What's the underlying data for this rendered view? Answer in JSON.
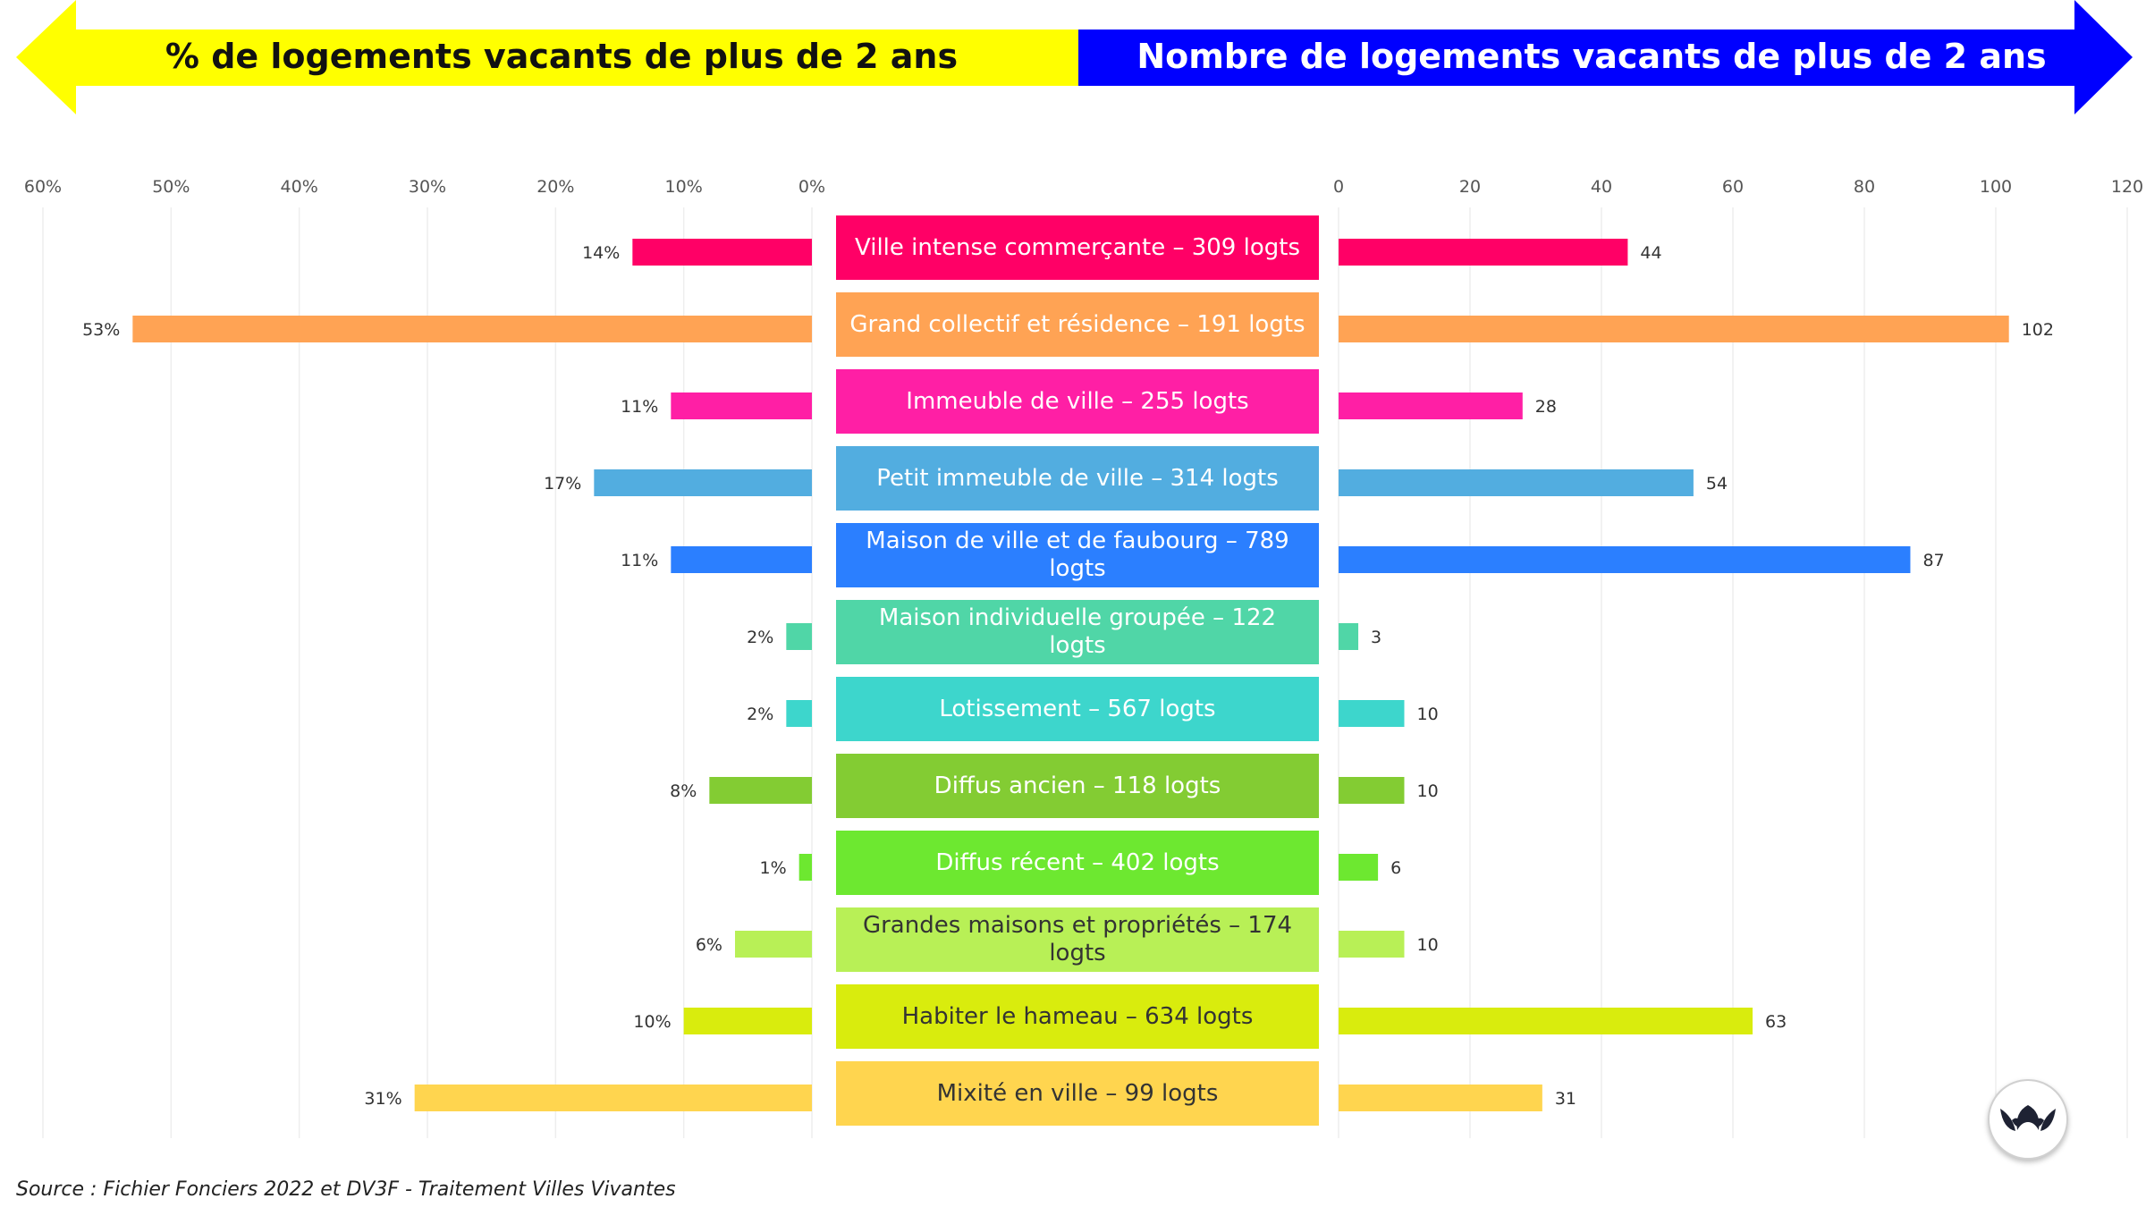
{
  "header": {
    "left_banner": "% de logements vacants de plus de 2 ans",
    "right_banner": "Nombre de logements vacants de plus de 2 ans",
    "left_color": "#ffff00",
    "right_color": "#0000ff"
  },
  "source": "Source : Fichier Fonciers 2022 et DV3F - Traitement Villes Vivantes",
  "logo_icon": "villes-vivantes-logo-icon",
  "chart_data": {
    "type": "bar",
    "left_axis": {
      "ticks": [
        "60%",
        "50%",
        "40%",
        "30%",
        "20%",
        "10%",
        "0%"
      ],
      "range": [
        0,
        60
      ],
      "direction": "reversed"
    },
    "right_axis": {
      "ticks": [
        "0",
        "20",
        "40",
        "60",
        "80",
        "100",
        "120"
      ],
      "range": [
        0,
        120
      ]
    },
    "grid": true,
    "categories": [
      "Ville intense commerçante – 309 logts",
      "Grand collectif et résidence – 191 logts",
      "Immeuble de ville – 255 logts",
      "Petit immeuble de ville – 314 logts",
      "Maison de ville et de faubourg – 789 logts",
      "Maison individuelle groupée – 122 logts",
      "Lotissement – 567 logts",
      "Diffus ancien – 118 logts",
      "Diffus récent – 402 logts",
      "Grandes maisons et propriétés – 174 logts",
      "Habiter le hameau – 634 logts",
      "Mixité en ville – 99 logts"
    ],
    "colors": [
      "#ff0066",
      "#ffa354",
      "#ff1fa5",
      "#52ade0",
      "#2b7fff",
      "#50d6a7",
      "#3dd6cc",
      "#83cc33",
      "#6de830",
      "#b8f056",
      "#d9ec0d",
      "#ffd54f"
    ],
    "text_colors": [
      "#ffffff",
      "#ffffff",
      "#ffffff",
      "#ffffff",
      "#ffffff",
      "#ffffff",
      "#ffffff",
      "#ffffff",
      "#ffffff",
      "#333333",
      "#333333",
      "#333333"
    ],
    "series": [
      {
        "axis": "left",
        "values": [
          14,
          53,
          11,
          17,
          11,
          2,
          2,
          8,
          1,
          6,
          10,
          31
        ],
        "labels": [
          "14%",
          "53%",
          "11%",
          "17%",
          "11%",
          "2%",
          "2%",
          "8%",
          "1%",
          "6%",
          "10%",
          "31%"
        ]
      },
      {
        "axis": "right",
        "values": [
          44,
          102,
          28,
          54,
          87,
          3,
          10,
          10,
          6,
          10,
          63,
          31
        ],
        "labels": [
          "44",
          "102",
          "28",
          "54",
          "87",
          "3",
          "10",
          "10",
          "6",
          "10",
          "63",
          "31"
        ]
      }
    ]
  }
}
